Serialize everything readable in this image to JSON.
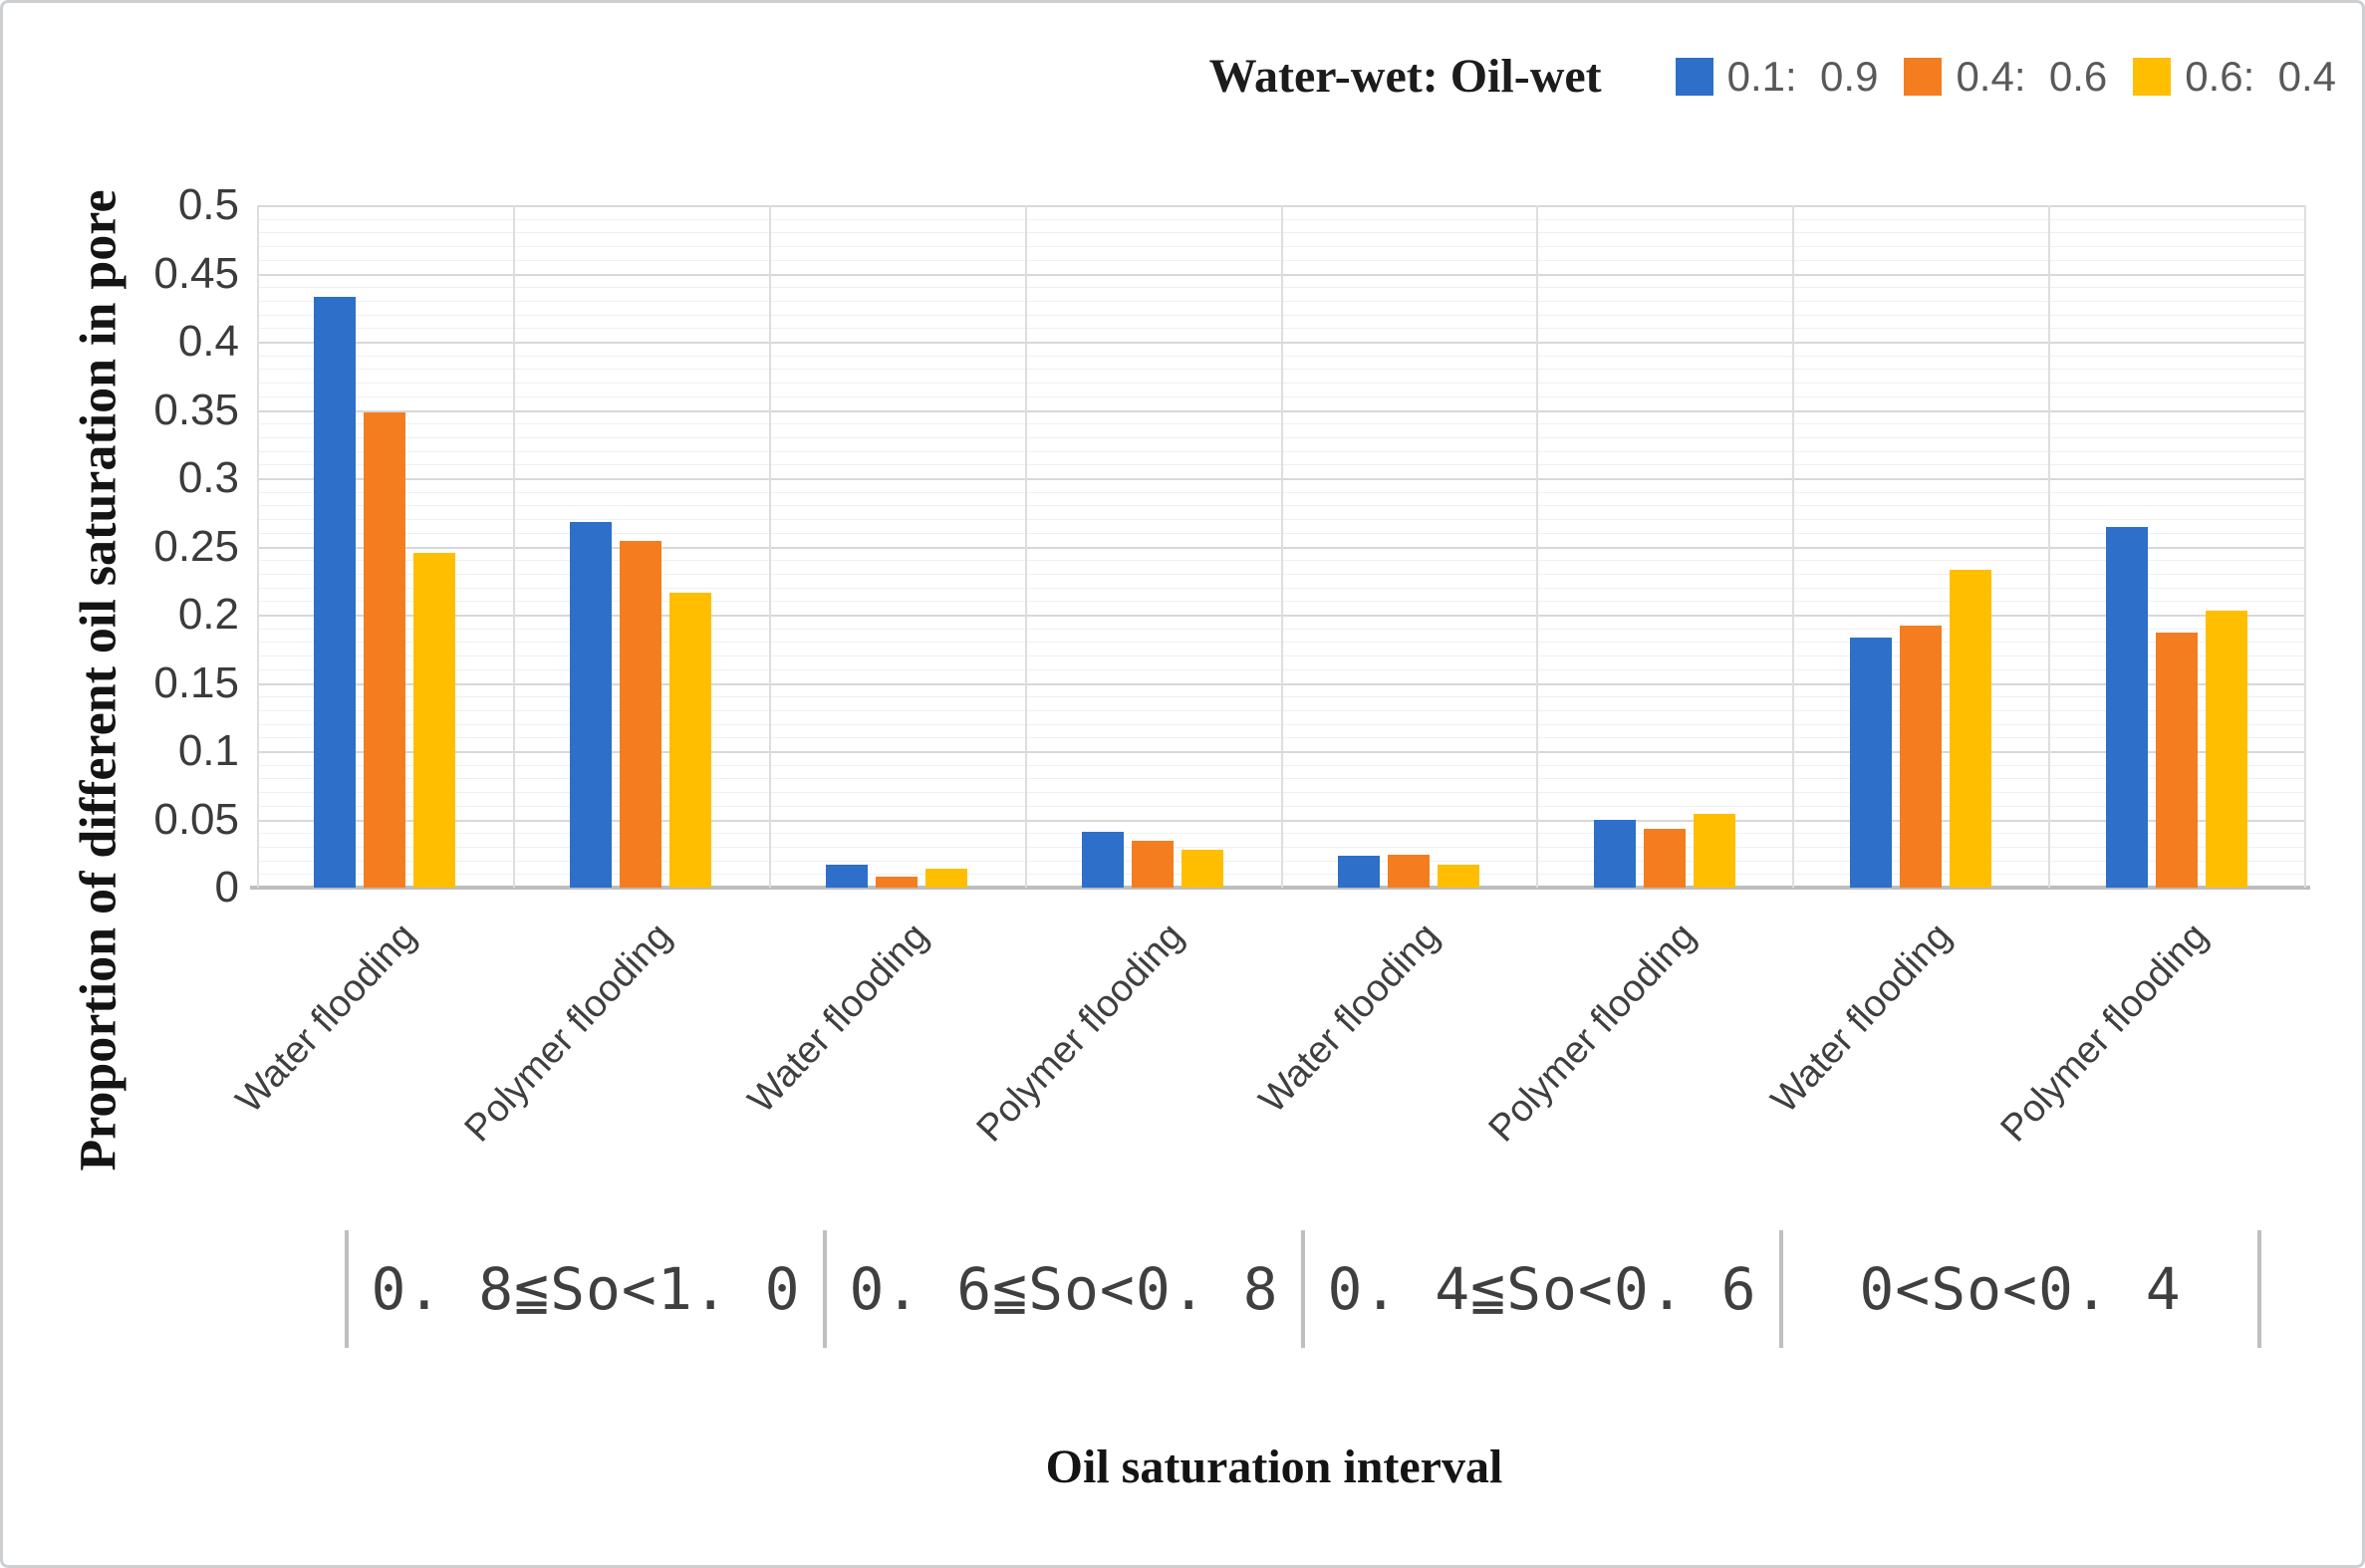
{
  "figure": {
    "y_axis_title": "Proportion of different oil saturation in pore",
    "x_axis_title": "Oil saturation interval",
    "legend_title": "Water-wet: Oil-wet"
  },
  "chart_data": {
    "type": "bar",
    "title": "",
    "xlabel": "Oil saturation interval",
    "ylabel": "Proportion of different oil saturation in pore",
    "ylim": [
      0,
      0.5
    ],
    "y_ticks": [
      "0.5",
      "0.45",
      "0.4",
      "0.35",
      "0.3",
      "0.25",
      "0.2",
      "0.15",
      "0.1",
      "0.05",
      "0"
    ],
    "grid": "horizontal major every 0.05, minor every 0.01; vertical lines at category boundaries",
    "legend_position": "top-right",
    "legend_title": "Water-wet: Oil-wet",
    "categories": [
      "Water flooding",
      "Polymer flooding",
      "Water flooding",
      "Polymer flooding",
      "Water flooding",
      "Polymer flooding",
      "Water flooding",
      "Polymer flooding"
    ],
    "group_labels": [
      "0. 8≦So<1. 0",
      "0. 6≦So<0. 8",
      "0. 4≦So<0. 6",
      "0<So<0. 4"
    ],
    "series": [
      {
        "name": "0.1:  0.9",
        "color": "#2d6fc9",
        "values": [
          0.433,
          0.268,
          0.017,
          0.041,
          0.023,
          0.05,
          0.183,
          0.264
        ]
      },
      {
        "name": "0.4:  0.6",
        "color": "#f47d20",
        "values": [
          0.348,
          0.254,
          0.008,
          0.034,
          0.024,
          0.043,
          0.192,
          0.187
        ]
      },
      {
        "name": "0.6:  0.4",
        "color": "#ffbe00",
        "values": [
          0.245,
          0.216,
          0.014,
          0.028,
          0.017,
          0.054,
          0.233,
          0.203
        ]
      }
    ]
  }
}
